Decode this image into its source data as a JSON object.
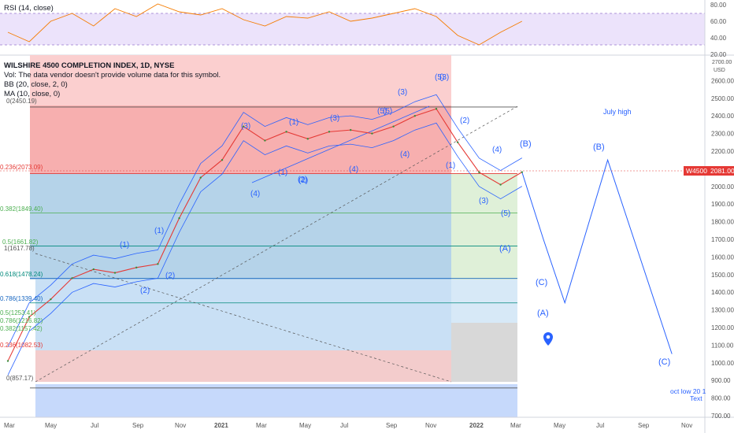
{
  "rsi": {
    "label": "RSI (14, close)",
    "axis_ticks": [
      "80.00",
      "60.00",
      "40.00",
      "20.00"
    ]
  },
  "header": {
    "title": "WILSHIRE 4500 COMPLETION INDEX, 1D, NYSE",
    "vol_note": "Vol: The data vendor doesn't provide volume data for this symbol.",
    "bb": "BB (20, close, 2, 0)",
    "ma": "MA (10, close, 0)"
  },
  "price_axis": {
    "currency": "USD",
    "top_label": "2700.00",
    "ticks": [
      "2600.00",
      "2500.00",
      "2400.00",
      "2300.00",
      "2200.00",
      "2100.00",
      "2000.00",
      "1900.00",
      "1800.00",
      "1700.00",
      "1600.00",
      "1500.00",
      "1400.00",
      "1300.00",
      "1200.00",
      "1100.00",
      "1000.00",
      "900.00",
      "800.00",
      "700.00"
    ],
    "symbol_tag": "W4500",
    "last_price": "2081.00"
  },
  "time_axis": {
    "labels": [
      "Mar",
      "May",
      "Jul",
      "Sep",
      "Nov",
      "2021",
      "Mar",
      "May",
      "Jul",
      "Sep",
      "Nov",
      "2022",
      "Mar",
      "May",
      "Jul",
      "Sep",
      "Nov"
    ]
  },
  "fib_labels": {
    "top": "0(2450.19)",
    "f236": "0.236(2073.09)",
    "f382": "0.382(1849.40)",
    "f5": "0.5(1661.82)",
    "f1": "1(1617.78)",
    "f618": "0.618(1478.24)",
    "f786": "0.786(1339.40)",
    "left_a": "0.5(1253.41)",
    "left_b": "0.786(1216.82)",
    "left_c": "0.382(1157.42)",
    "left_d": "0.236(1082.53)",
    "bottom": "0(857.17)"
  },
  "waves": [
    "(1)",
    "(2)",
    "(1)",
    "(2)",
    "(1)",
    "(2)",
    "(3)",
    "(4)",
    "(1)",
    "(2)",
    "(3)",
    "(4)",
    "(5)",
    "(3)",
    "(5)",
    "(3)",
    "(4)",
    "(5)",
    "(1)",
    "(2)",
    "(3)",
    "(4)",
    "(5)",
    "(A)",
    "(B)",
    "(C)",
    "(A)",
    "(B)",
    "(C)"
  ],
  "notes": {
    "july_high": "July high",
    "oct_low": "oct low  20 1",
    "text": "Text"
  },
  "chart_data": {
    "type": "line",
    "title": "WILSHIRE 4500 COMPLETION INDEX, 1D, NYSE",
    "ylabel": "USD",
    "ylim": [
      700,
      2700
    ],
    "x": [
      "2020-03",
      "2020-04",
      "2020-05",
      "2020-06",
      "2020-07",
      "2020-08",
      "2020-09",
      "2020-10",
      "2020-11",
      "2020-12",
      "2021-01",
      "2021-02",
      "2021-03",
      "2021-04",
      "2021-05",
      "2021-06",
      "2021-07",
      "2021-08",
      "2021-09",
      "2021-10",
      "2021-11",
      "2021-12",
      "2022-01",
      "2022-02",
      "2022-03"
    ],
    "series": [
      {
        "values": [
          1010,
          1260,
          1360,
          1480,
          1530,
          1510,
          1540,
          1560,
          1820,
          2050,
          2150,
          2340,
          2260,
          2310,
          2270,
          2310,
          2320,
          2300,
          2340,
          2400,
          2440,
          2250,
          2080,
          2010,
          2081
        ]
      }
    ],
    "projection": {
      "x": [
        "2022-03",
        "2022-04",
        "2022-05",
        "2022-07",
        "2022-10"
      ],
      "values": [
        2081,
        1700,
        1340,
        2150,
        1050
      ]
    },
    "fib_levels": [
      2450.19,
      2073.09,
      1849.4,
      1661.82,
      1478.24,
      1339.4,
      857.17
    ],
    "rsi": {
      "ylim": [
        20,
        80
      ],
      "values": [
        48,
        42,
        55,
        60,
        52,
        63,
        58,
        66,
        61,
        59,
        63,
        56,
        52,
        58,
        57,
        61,
        55,
        57,
        60,
        63,
        58,
        46,
        40,
        48,
        55
      ]
    },
    "colors": {
      "price": "#e53935",
      "projection": "#2962ff",
      "upper_zone": "#f8a6a6",
      "fib_zone": "#a9cfee",
      "rsi_line": "#f57c00",
      "rsi_band": "#e6dcf7"
    }
  }
}
